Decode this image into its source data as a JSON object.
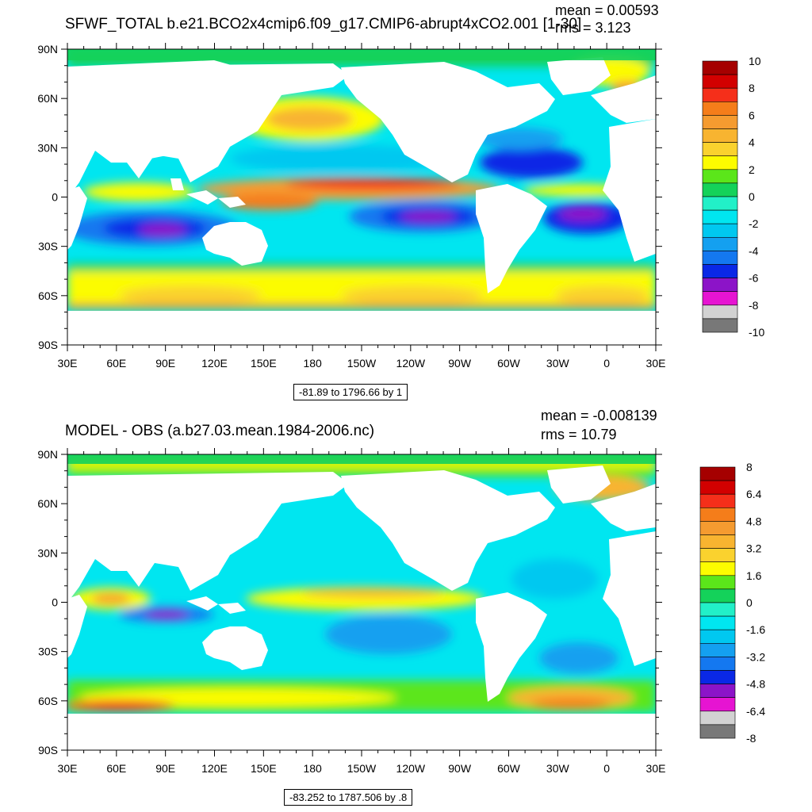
{
  "panels": [
    {
      "title": "SFWF_TOTAL b.e21.BCO2x4cmip6.f09_g17.CMIP6-abrupt4xCO2.001 [1-30]",
      "mean": "mean = 0.00593",
      "rms": "rms = 3.123",
      "range": "-81.89 to 1796.66 by 1",
      "colorbar_labels": [
        "10",
        "8",
        "6",
        "4",
        "2",
        "0",
        "-2",
        "-4",
        "-6",
        "-8",
        "-10"
      ]
    },
    {
      "title": "MODEL - OBS (a.b27.03.mean.1984-2006.nc)",
      "mean": "mean = -0.008139",
      "rms": "rms = 10.79",
      "range": "-83.252 to 1787.506 by .8",
      "colorbar_labels": [
        "8",
        "6.4",
        "4.8",
        "3.2",
        "1.6",
        "0",
        "-1.6",
        "-3.2",
        "-4.8",
        "-6.4",
        "-8"
      ]
    }
  ],
  "lat_labels": [
    "90N",
    "60N",
    "30N",
    "0",
    "30S",
    "60S",
    "90S"
  ],
  "lon_labels": [
    "30E",
    "60E",
    "90E",
    "120E",
    "150E",
    "180",
    "150W",
    "120W",
    "90W",
    "60W",
    "30W",
    "0",
    "30E"
  ],
  "colors": {
    "cb_top": [
      "#a50000",
      "#d20000",
      "#f52f1a",
      "#f57d1a",
      "#f59b30",
      "#f8b430",
      "#fad22e",
      "#fcfc00",
      "#5be61a",
      "#14d25a",
      "#22f0c8",
      "#00e6f0",
      "#00c8f0",
      "#14a0f0",
      "#1478f0",
      "#0a28e6",
      "#8c14c8",
      "#e614d2",
      "#d2d2d2",
      "#787878"
    ],
    "cb_bottom": [
      "#a50000",
      "#d20000",
      "#f52f1a",
      "#f57d1a",
      "#f59b30",
      "#f8b430",
      "#fad22e",
      "#fcfc00",
      "#5be61a",
      "#14d25a",
      "#22f0c8",
      "#00e6f0",
      "#00c8f0",
      "#14a0f0",
      "#1478f0",
      "#0a28e6",
      "#8c14c8",
      "#e614d2",
      "#d2d2d2",
      "#787878"
    ]
  }
}
